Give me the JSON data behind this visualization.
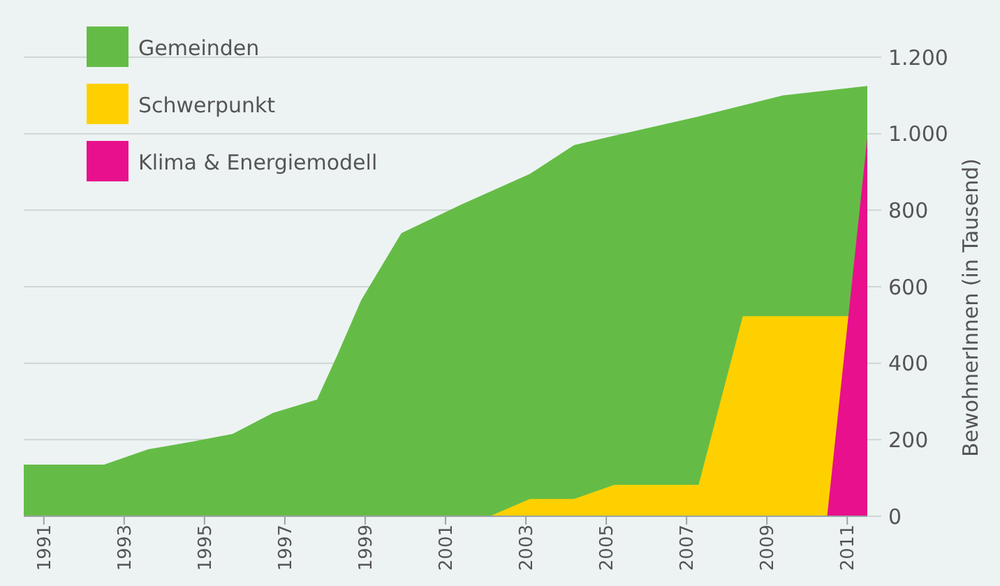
{
  "chart_data": {
    "type": "area",
    "ylabel": "BewohnerInnen (in Tausend)",
    "xlim": [
      1990.5,
      2011.5
    ],
    "xticks": [
      1991,
      1993,
      1995,
      1997,
      1999,
      2001,
      2003,
      2005,
      2007,
      2009,
      2011
    ],
    "ylim": [
      0,
      1200
    ],
    "yticks": [
      0,
      200,
      400,
      600,
      800,
      {
        "value": 1000,
        "label": "1.000"
      },
      {
        "value": 1200,
        "label": "1.200"
      }
    ],
    "grid": "y",
    "legend": "top left",
    "series": [
      {
        "name": "Gemeinden",
        "color": "#64bc46",
        "x": [
          1990.5,
          1992.5,
          1993.6,
          1994.7,
          1995.7,
          1996.7,
          1997.8,
          1998.3,
          1998.9,
          1999.9,
          2001.4,
          2003.1,
          2004.2,
          2005.2,
          2007.3,
          2009.4,
          2011.5
        ],
        "values": [
          135,
          135,
          175,
          195,
          215,
          270,
          305,
          420,
          565,
          740,
          815,
          895,
          970,
          995,
          1045,
          1100,
          1125
        ]
      },
      {
        "name": "Schwerpunkt",
        "color": "#ffd000",
        "x": [
          2002.1,
          2003.1,
          2004.2,
          2005.2,
          2007.3,
          2008.4,
          2011.5
        ],
        "values": [
          0,
          45,
          45,
          82,
          82,
          523,
          523
        ]
      },
      {
        "name": "Klima & Energiemodell",
        "color": "#e8108c",
        "x": [
          2010.5,
          2011.5
        ],
        "values": [
          0,
          990
        ]
      }
    ]
  }
}
